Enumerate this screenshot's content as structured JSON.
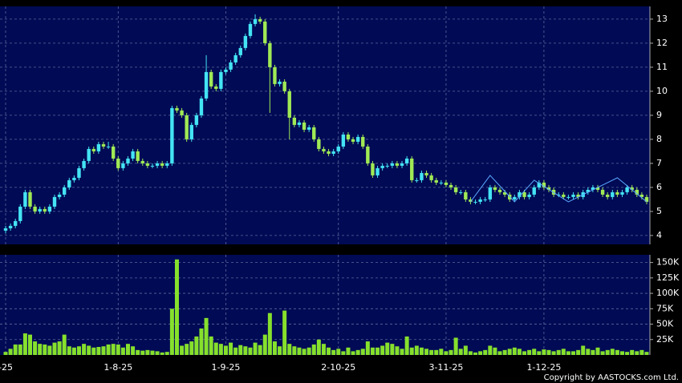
{
  "chart_data": [
    {
      "type": "candlestick",
      "categories": [
        "-25",
        null,
        null,
        null,
        null,
        null,
        null,
        null,
        null,
        null,
        null,
        null,
        null,
        null,
        null,
        null,
        null,
        null,
        null,
        null,
        null,
        null,
        null,
        "1-8-25",
        null,
        null,
        null,
        null,
        null,
        null,
        null,
        null,
        null,
        null,
        null,
        null,
        null,
        null,
        null,
        null,
        null,
        null,
        null,
        null,
        null,
        "1-9-25",
        null,
        null,
        null,
        null,
        null,
        null,
        null,
        null,
        null,
        null,
        null,
        null,
        null,
        null,
        null,
        null,
        null,
        null,
        null,
        null,
        null,
        null,
        "2-10-25",
        null,
        null,
        null,
        null,
        null,
        null,
        null,
        null,
        null,
        null,
        null,
        null,
        null,
        null,
        null,
        null,
        null,
        null,
        null,
        null,
        null,
        "3-11-25",
        null,
        null,
        null,
        null,
        null,
        null,
        null,
        null,
        null,
        null,
        null,
        null,
        null,
        null,
        null,
        null,
        null,
        null,
        null,
        "1-12-25",
        null,
        null,
        null,
        null,
        null,
        null,
        null,
        null,
        null,
        null,
        null,
        null,
        null,
        null,
        null,
        null,
        null,
        null,
        null,
        null,
        null
      ],
      "open": [
        4.2,
        4.3,
        4.4,
        4.6,
        5.2,
        5.8,
        5.2,
        5.0,
        5.1,
        5.0,
        5.2,
        5.6,
        5.7,
        6.0,
        6.3,
        6.4,
        6.8,
        7.1,
        7.6,
        7.5,
        7.8,
        7.7,
        7.7,
        7.2,
        6.8,
        7.0,
        7.2,
        7.5,
        7.1,
        7.0,
        6.9,
        6.9,
        7.0,
        6.9,
        7.0,
        9.3,
        9.2,
        9.0,
        8.0,
        8.6,
        9.0,
        9.7,
        10.8,
        10.2,
        10.1,
        10.8,
        10.9,
        11.2,
        11.5,
        11.8,
        12.3,
        12.8,
        13.0,
        12.9,
        12.0,
        11.0,
        10.3,
        10.4,
        10.0,
        8.9,
        8.6,
        8.7,
        8.4,
        8.5,
        8.0,
        7.6,
        7.5,
        7.4,
        7.5,
        7.7,
        8.2,
        8.0,
        7.9,
        8.1,
        7.7,
        7.0,
        6.5,
        6.8,
        6.9,
        6.9,
        7.0,
        6.9,
        7.0,
        7.2,
        6.3,
        6.3,
        6.6,
        6.5,
        6.3,
        6.2,
        6.2,
        6.1,
        6.0,
        5.8,
        5.8,
        5.5,
        5.4,
        5.4,
        5.5,
        5.5,
        6.0,
        5.9,
        5.8,
        5.7,
        5.5,
        5.6,
        5.8,
        5.6,
        5.7,
        6.0,
        6.2,
        6.0,
        5.9,
        5.7,
        5.7,
        5.6,
        5.6,
        5.7,
        5.6,
        5.8,
        5.9,
        6.0,
        5.9,
        5.7,
        5.6,
        5.8,
        5.7,
        5.8,
        6.0,
        5.9,
        5.7,
        5.6
      ],
      "high": [
        4.4,
        4.5,
        4.7,
        5.3,
        5.9,
        5.9,
        5.3,
        5.2,
        5.2,
        5.3,
        5.7,
        5.8,
        6.1,
        6.4,
        6.5,
        6.9,
        7.2,
        7.7,
        7.7,
        7.9,
        7.9,
        7.9,
        7.8,
        7.3,
        7.1,
        7.3,
        7.6,
        7.6,
        7.2,
        7.1,
        7.0,
        7.1,
        7.1,
        7.1,
        9.4,
        9.4,
        9.3,
        9.1,
        8.7,
        9.1,
        9.8,
        11.5,
        10.9,
        10.3,
        10.9,
        11.0,
        11.3,
        11.6,
        11.9,
        12.4,
        12.9,
        13.2,
        13.1,
        13.0,
        12.1,
        11.1,
        10.5,
        10.5,
        10.1,
        9.0,
        8.8,
        8.8,
        8.6,
        8.6,
        8.1,
        7.7,
        7.6,
        7.6,
        7.8,
        8.3,
        8.3,
        8.1,
        8.2,
        8.2,
        7.8,
        7.1,
        6.9,
        7.0,
        7.0,
        7.1,
        7.1,
        7.1,
        7.3,
        7.3,
        6.4,
        6.7,
        6.7,
        6.6,
        6.4,
        6.3,
        6.3,
        6.2,
        6.1,
        5.9,
        5.9,
        5.6,
        5.5,
        5.6,
        5.6,
        6.1,
        6.1,
        6.0,
        5.9,
        5.8,
        5.7,
        5.9,
        5.9,
        5.8,
        6.1,
        6.3,
        6.3,
        6.1,
        6.0,
        5.8,
        5.8,
        5.7,
        5.8,
        5.8,
        5.9,
        6.0,
        6.1,
        6.1,
        6.0,
        5.8,
        5.9,
        5.9,
        5.9,
        6.1,
        6.1,
        6.0,
        5.8,
        5.7
      ],
      "low": [
        4.1,
        4.2,
        4.3,
        4.5,
        5.1,
        5.1,
        4.9,
        4.9,
        4.9,
        4.9,
        5.1,
        5.5,
        5.6,
        5.9,
        6.2,
        6.3,
        6.7,
        7.0,
        7.4,
        7.4,
        7.6,
        7.6,
        7.1,
        6.7,
        6.7,
        6.9,
        7.1,
        7.0,
        6.9,
        6.8,
        6.8,
        6.8,
        6.8,
        6.8,
        6.9,
        9.1,
        8.9,
        7.9,
        7.9,
        8.5,
        8.9,
        9.6,
        10.1,
        10.0,
        10.0,
        10.7,
        10.8,
        11.1,
        11.4,
        11.7,
        12.2,
        12.7,
        12.8,
        11.9,
        9.1,
        10.2,
        10.2,
        9.9,
        8.0,
        8.5,
        8.5,
        8.3,
        8.3,
        7.9,
        7.5,
        7.4,
        7.3,
        7.3,
        7.4,
        7.6,
        7.9,
        7.8,
        7.8,
        7.6,
        6.9,
        6.4,
        6.4,
        6.7,
        6.8,
        6.8,
        6.8,
        6.8,
        6.9,
        6.2,
        6.2,
        6.2,
        6.4,
        6.2,
        6.1,
        6.1,
        6.0,
        5.9,
        5.7,
        5.7,
        5.4,
        5.3,
        5.3,
        5.3,
        5.4,
        5.4,
        5.8,
        5.7,
        5.6,
        5.4,
        5.4,
        5.5,
        5.5,
        5.5,
        5.6,
        5.9,
        5.9,
        5.8,
        5.6,
        5.6,
        5.5,
        5.5,
        5.5,
        5.5,
        5.5,
        5.7,
        5.8,
        5.8,
        5.6,
        5.5,
        5.5,
        5.6,
        5.6,
        5.7,
        5.8,
        5.6,
        5.5,
        5.3
      ],
      "close": [
        4.3,
        4.4,
        4.6,
        5.2,
        5.8,
        5.2,
        5.0,
        5.1,
        5.0,
        5.2,
        5.6,
        5.7,
        6.0,
        6.3,
        6.4,
        6.8,
        7.1,
        7.6,
        7.5,
        7.8,
        7.7,
        7.7,
        7.2,
        6.8,
        7.0,
        7.2,
        7.5,
        7.1,
        7.0,
        6.9,
        6.9,
        7.0,
        6.9,
        7.0,
        9.3,
        9.2,
        9.0,
        8.0,
        8.6,
        9.0,
        9.7,
        10.8,
        10.2,
        10.1,
        10.8,
        10.9,
        11.2,
        11.5,
        11.8,
        12.3,
        12.8,
        13.0,
        12.9,
        12.0,
        11.0,
        10.3,
        10.4,
        10.0,
        8.9,
        8.6,
        8.7,
        8.4,
        8.5,
        8.0,
        7.6,
        7.5,
        7.4,
        7.5,
        7.7,
        8.2,
        8.0,
        7.9,
        8.1,
        7.7,
        7.0,
        6.5,
        6.8,
        6.9,
        6.9,
        7.0,
        6.9,
        7.0,
        7.2,
        6.3,
        6.3,
        6.6,
        6.5,
        6.3,
        6.2,
        6.2,
        6.1,
        6.0,
        5.8,
        5.8,
        5.5,
        5.4,
        5.4,
        5.5,
        5.5,
        6.0,
        5.9,
        5.8,
        5.7,
        5.5,
        5.6,
        5.8,
        5.6,
        5.7,
        6.0,
        6.2,
        6.0,
        5.9,
        5.7,
        5.7,
        5.6,
        5.6,
        5.7,
        5.6,
        5.8,
        5.9,
        6.0,
        5.9,
        5.7,
        5.6,
        5.8,
        5.7,
        5.8,
        6.0,
        5.9,
        5.7,
        5.6,
        5.4
      ],
      "up_color": "#44e4f4",
      "down_color": "#a0ea55",
      "overlay": {
        "color": "#5aa8ff",
        "x": [
          95,
          99,
          104,
          108,
          115,
          125,
          131
        ],
        "values": [
          5.4,
          6.5,
          5.4,
          6.3,
          5.4,
          6.4,
          5.4
        ]
      },
      "ylim": [
        3.63,
        13.53
      ],
      "yticks": [
        4,
        5,
        6,
        7,
        8,
        9,
        10,
        11,
        12,
        13
      ],
      "grid": true
    },
    {
      "type": "bar",
      "values": [
        5000,
        10000,
        17000,
        17000,
        35000,
        33000,
        22000,
        18000,
        17000,
        15000,
        20000,
        22000,
        33000,
        14000,
        12000,
        14000,
        18000,
        15000,
        12000,
        13000,
        14000,
        17000,
        18000,
        17000,
        12000,
        18000,
        14000,
        8000,
        7000,
        8000,
        7000,
        6000,
        4000,
        5000,
        75000,
        155000,
        15000,
        18000,
        22000,
        30000,
        43000,
        60000,
        30000,
        20000,
        18000,
        15000,
        20000,
        12000,
        16000,
        14000,
        12000,
        20000,
        16000,
        33000,
        68000,
        22000,
        14000,
        72000,
        18000,
        14000,
        12000,
        10000,
        12000,
        17000,
        25000,
        18000,
        12000,
        8000,
        10000,
        6000,
        12000,
        6000,
        8000,
        10000,
        22000,
        12000,
        12000,
        15000,
        20000,
        18000,
        14000,
        10000,
        30000,
        12000,
        15000,
        12000,
        10000,
        8000,
        8000,
        10000,
        6000,
        8000,
        28000,
        10000,
        15000,
        6000,
        4000,
        6000,
        8000,
        15000,
        12000,
        6000,
        8000,
        10000,
        12000,
        10000,
        6000,
        8000,
        10000,
        6000,
        9000,
        8000,
        6000,
        8000,
        10000,
        6000,
        6000,
        8000,
        15000,
        10000,
        8000,
        12000,
        6000,
        8000,
        10000,
        8000,
        6000,
        5000,
        8000,
        6000,
        8000,
        5000
      ],
      "color": "#86e02c",
      "ylim": [
        0,
        162500
      ],
      "yticks": [
        {
          "value": 25000,
          "label": "25K"
        },
        {
          "value": 50000,
          "label": "50K"
        },
        {
          "value": 75000,
          "label": "75K"
        },
        {
          "value": 100000,
          "label": "100K"
        },
        {
          "value": 125000,
          "label": "125K"
        },
        {
          "value": 150000,
          "label": "150K"
        }
      ],
      "grid": true
    }
  ],
  "footer": "Copyright by AASTOCKS.com Ltd."
}
